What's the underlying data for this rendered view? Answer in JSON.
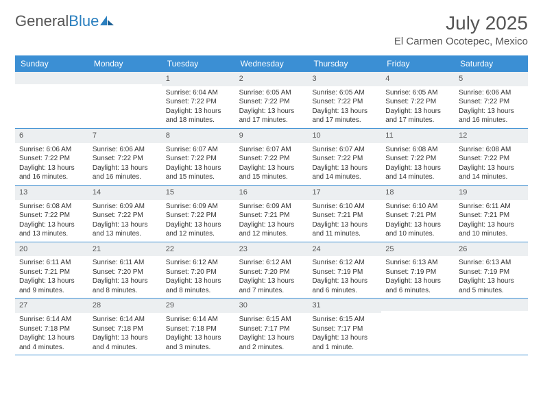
{
  "brand": {
    "part1": "General",
    "part2": "Blue"
  },
  "title": "July 2025",
  "location": "El Carmen Ocotepec, Mexico",
  "colors": {
    "header_bg": "#3b8fd4",
    "header_text": "#ffffff",
    "daynum_bg": "#eceff1",
    "text": "#333333",
    "rule": "#3b8fd4",
    "brand_gray": "#555555",
    "brand_blue": "#2a7fbf",
    "page_bg": "#ffffff"
  },
  "typography": {
    "title_fontsize": 28,
    "location_fontsize": 15,
    "header_fontsize": 12,
    "daynum_fontsize": 11,
    "body_fontsize": 10
  },
  "weekdays": [
    "Sunday",
    "Monday",
    "Tuesday",
    "Wednesday",
    "Thursday",
    "Friday",
    "Saturday"
  ],
  "weeks": [
    [
      {
        "num": "",
        "lines": [
          "",
          "",
          "",
          ""
        ]
      },
      {
        "num": "",
        "lines": [
          "",
          "",
          "",
          ""
        ]
      },
      {
        "num": "1",
        "lines": [
          "Sunrise: 6:04 AM",
          "Sunset: 7:22 PM",
          "Daylight: 13 hours",
          "and 18 minutes."
        ]
      },
      {
        "num": "2",
        "lines": [
          "Sunrise: 6:05 AM",
          "Sunset: 7:22 PM",
          "Daylight: 13 hours",
          "and 17 minutes."
        ]
      },
      {
        "num": "3",
        "lines": [
          "Sunrise: 6:05 AM",
          "Sunset: 7:22 PM",
          "Daylight: 13 hours",
          "and 17 minutes."
        ]
      },
      {
        "num": "4",
        "lines": [
          "Sunrise: 6:05 AM",
          "Sunset: 7:22 PM",
          "Daylight: 13 hours",
          "and 17 minutes."
        ]
      },
      {
        "num": "5",
        "lines": [
          "Sunrise: 6:06 AM",
          "Sunset: 7:22 PM",
          "Daylight: 13 hours",
          "and 16 minutes."
        ]
      }
    ],
    [
      {
        "num": "6",
        "lines": [
          "Sunrise: 6:06 AM",
          "Sunset: 7:22 PM",
          "Daylight: 13 hours",
          "and 16 minutes."
        ]
      },
      {
        "num": "7",
        "lines": [
          "Sunrise: 6:06 AM",
          "Sunset: 7:22 PM",
          "Daylight: 13 hours",
          "and 16 minutes."
        ]
      },
      {
        "num": "8",
        "lines": [
          "Sunrise: 6:07 AM",
          "Sunset: 7:22 PM",
          "Daylight: 13 hours",
          "and 15 minutes."
        ]
      },
      {
        "num": "9",
        "lines": [
          "Sunrise: 6:07 AM",
          "Sunset: 7:22 PM",
          "Daylight: 13 hours",
          "and 15 minutes."
        ]
      },
      {
        "num": "10",
        "lines": [
          "Sunrise: 6:07 AM",
          "Sunset: 7:22 PM",
          "Daylight: 13 hours",
          "and 14 minutes."
        ]
      },
      {
        "num": "11",
        "lines": [
          "Sunrise: 6:08 AM",
          "Sunset: 7:22 PM",
          "Daylight: 13 hours",
          "and 14 minutes."
        ]
      },
      {
        "num": "12",
        "lines": [
          "Sunrise: 6:08 AM",
          "Sunset: 7:22 PM",
          "Daylight: 13 hours",
          "and 14 minutes."
        ]
      }
    ],
    [
      {
        "num": "13",
        "lines": [
          "Sunrise: 6:08 AM",
          "Sunset: 7:22 PM",
          "Daylight: 13 hours",
          "and 13 minutes."
        ]
      },
      {
        "num": "14",
        "lines": [
          "Sunrise: 6:09 AM",
          "Sunset: 7:22 PM",
          "Daylight: 13 hours",
          "and 13 minutes."
        ]
      },
      {
        "num": "15",
        "lines": [
          "Sunrise: 6:09 AM",
          "Sunset: 7:22 PM",
          "Daylight: 13 hours",
          "and 12 minutes."
        ]
      },
      {
        "num": "16",
        "lines": [
          "Sunrise: 6:09 AM",
          "Sunset: 7:21 PM",
          "Daylight: 13 hours",
          "and 12 minutes."
        ]
      },
      {
        "num": "17",
        "lines": [
          "Sunrise: 6:10 AM",
          "Sunset: 7:21 PM",
          "Daylight: 13 hours",
          "and 11 minutes."
        ]
      },
      {
        "num": "18",
        "lines": [
          "Sunrise: 6:10 AM",
          "Sunset: 7:21 PM",
          "Daylight: 13 hours",
          "and 10 minutes."
        ]
      },
      {
        "num": "19",
        "lines": [
          "Sunrise: 6:11 AM",
          "Sunset: 7:21 PM",
          "Daylight: 13 hours",
          "and 10 minutes."
        ]
      }
    ],
    [
      {
        "num": "20",
        "lines": [
          "Sunrise: 6:11 AM",
          "Sunset: 7:21 PM",
          "Daylight: 13 hours",
          "and 9 minutes."
        ]
      },
      {
        "num": "21",
        "lines": [
          "Sunrise: 6:11 AM",
          "Sunset: 7:20 PM",
          "Daylight: 13 hours",
          "and 8 minutes."
        ]
      },
      {
        "num": "22",
        "lines": [
          "Sunrise: 6:12 AM",
          "Sunset: 7:20 PM",
          "Daylight: 13 hours",
          "and 8 minutes."
        ]
      },
      {
        "num": "23",
        "lines": [
          "Sunrise: 6:12 AM",
          "Sunset: 7:20 PM",
          "Daylight: 13 hours",
          "and 7 minutes."
        ]
      },
      {
        "num": "24",
        "lines": [
          "Sunrise: 6:12 AM",
          "Sunset: 7:19 PM",
          "Daylight: 13 hours",
          "and 6 minutes."
        ]
      },
      {
        "num": "25",
        "lines": [
          "Sunrise: 6:13 AM",
          "Sunset: 7:19 PM",
          "Daylight: 13 hours",
          "and 6 minutes."
        ]
      },
      {
        "num": "26",
        "lines": [
          "Sunrise: 6:13 AM",
          "Sunset: 7:19 PM",
          "Daylight: 13 hours",
          "and 5 minutes."
        ]
      }
    ],
    [
      {
        "num": "27",
        "lines": [
          "Sunrise: 6:14 AM",
          "Sunset: 7:18 PM",
          "Daylight: 13 hours",
          "and 4 minutes."
        ]
      },
      {
        "num": "28",
        "lines": [
          "Sunrise: 6:14 AM",
          "Sunset: 7:18 PM",
          "Daylight: 13 hours",
          "and 4 minutes."
        ]
      },
      {
        "num": "29",
        "lines": [
          "Sunrise: 6:14 AM",
          "Sunset: 7:18 PM",
          "Daylight: 13 hours",
          "and 3 minutes."
        ]
      },
      {
        "num": "30",
        "lines": [
          "Sunrise: 6:15 AM",
          "Sunset: 7:17 PM",
          "Daylight: 13 hours",
          "and 2 minutes."
        ]
      },
      {
        "num": "31",
        "lines": [
          "Sunrise: 6:15 AM",
          "Sunset: 7:17 PM",
          "Daylight: 13 hours",
          "and 1 minute."
        ]
      },
      {
        "num": "",
        "lines": [
          "",
          "",
          "",
          ""
        ]
      },
      {
        "num": "",
        "lines": [
          "",
          "",
          "",
          ""
        ]
      }
    ]
  ]
}
